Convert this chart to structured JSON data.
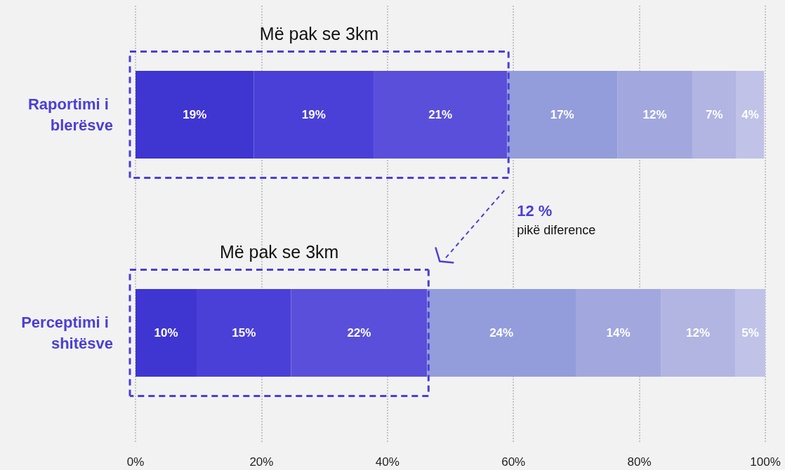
{
  "chart_data": {
    "type": "bar",
    "orientation": "horizontal",
    "stacked": true,
    "categories": [
      "Raportimi i blerësve",
      "Perceptimi i shitësve"
    ],
    "series": [
      {
        "color": "#3f35d1",
        "values": [
          18.8,
          9.7
        ],
        "value_labels": [
          "19%",
          "10%"
        ]
      },
      {
        "color": "#4a40d7",
        "values": [
          19,
          15
        ],
        "value_labels": [
          "19%",
          "15%"
        ]
      },
      {
        "color": "#5a4fda",
        "values": [
          21.2,
          21.6
        ],
        "value_labels": [
          "21%",
          "22%"
        ]
      },
      {
        "color": "#939ddb",
        "values": [
          17.5,
          23.6
        ],
        "value_labels": [
          "17%",
          "24%"
        ]
      },
      {
        "color": "#a2a8dd",
        "values": [
          11.9,
          13.5
        ],
        "value_labels": [
          "12%",
          "14%"
        ]
      },
      {
        "color": "#b2b4e2",
        "values": [
          7,
          11.8
        ],
        "value_labels": [
          "7%",
          "12%"
        ]
      },
      {
        "color": "#c0c3e7",
        "values": [
          4.4,
          4.8
        ],
        "value_labels": [
          "4%",
          "5%"
        ]
      }
    ],
    "xlim": [
      0,
      100
    ],
    "xticks": [
      {
        "value": 0,
        "label": "0%"
      },
      {
        "value": 20,
        "label": "20%"
      },
      {
        "value": 40,
        "label": "40%"
      },
      {
        "value": 60,
        "label": "60%"
      },
      {
        "value": 80,
        "label": "80%"
      },
      {
        "value": 100,
        "label": "100%"
      }
    ],
    "grid": "x",
    "annotations": [
      "Më pak se 3km",
      "Më pak se 3km",
      "12 %",
      "pikë diference"
    ]
  }
}
